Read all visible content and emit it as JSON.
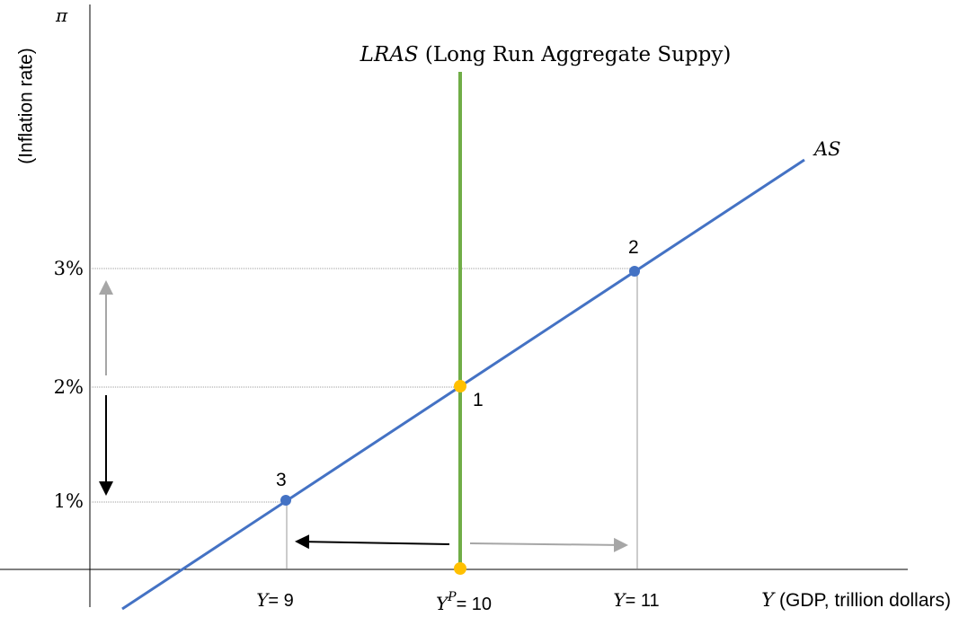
{
  "y_axis": {
    "symbol": "π",
    "label": "(Inflation rate)"
  },
  "x_axis": {
    "symbol": "Y",
    "label": " (GDP, trillion dollars)"
  },
  "lras": {
    "symbol": "LRAS",
    "label": " (Long Run Aggregate Suppy)",
    "color": "#70ad47"
  },
  "as_curve": {
    "label": "AS",
    "color": "#4472c4"
  },
  "ticks": {
    "y": [
      {
        "label": "3%",
        "value": 3
      },
      {
        "label": "2%",
        "value": 2
      },
      {
        "label": "1%",
        "value": 1
      }
    ],
    "x": [
      {
        "symbol": "Y",
        "sup": "",
        "rest": "= 9",
        "value": 9
      },
      {
        "symbol": "Y",
        "sup": "P",
        "rest": "= 10",
        "value": 10
      },
      {
        "symbol": "Y",
        "sup": "",
        "rest": "= 11",
        "value": 11
      }
    ]
  },
  "points": [
    {
      "label": "1",
      "x": 10,
      "y": 2,
      "color": "#ffc000"
    },
    {
      "label": "2",
      "x": 11,
      "y": 3,
      "color": "#4472c4"
    },
    {
      "label": "3",
      "x": 9,
      "y": 1,
      "color": "#4472c4"
    }
  ],
  "colors": {
    "arrow_dark": "#000000",
    "arrow_light": "#a6a6a6",
    "guide": "#7f7f7f",
    "axis": "#000000"
  }
}
